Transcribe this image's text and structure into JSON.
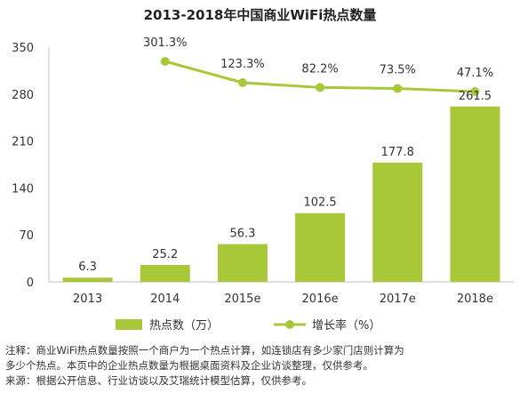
{
  "chart_data": {
    "type": "bar",
    "title": "2013-2018年中国商业WiFi热点数量",
    "categories": [
      "2013",
      "2014",
      "2015e",
      "2016e",
      "2017e",
      "2018e"
    ],
    "ylim": [
      0,
      350
    ],
    "yticks": [
      "0",
      "70",
      "140",
      "210",
      "280",
      "350"
    ],
    "series": [
      {
        "name": "热点数（万）",
        "type": "bar",
        "values": [
          6.3,
          25.2,
          56.3,
          102.5,
          177.8,
          261.5
        ],
        "labels": [
          "6.3",
          "25.2",
          "56.3",
          "102.5",
          "177.8",
          "261.5"
        ],
        "color": "#a8c83a"
      },
      {
        "name": "增长率（%）",
        "type": "line",
        "values": [
          null,
          301.3,
          123.3,
          82.2,
          73.5,
          47.1
        ],
        "labels": [
          "",
          "301.3%",
          "123.3%",
          "82.2%",
          "73.5%",
          "47.1%"
        ],
        "color": "#a8c83a"
      }
    ],
    "legend": "bottom",
    "grid": false
  },
  "notes": {
    "line1": "注释：商业WiFi热点数量按照一个商户为一个热点计算，如连锁店有多少家门店则计算为",
    "line2": "多少个热点。本页中的企业热点数量为根据桌面资料及企业访谈整理，仅供参考。",
    "line3": "来源：根据公开信息、行业访谈以及艾瑞统计模型估算，仅供参考。"
  }
}
